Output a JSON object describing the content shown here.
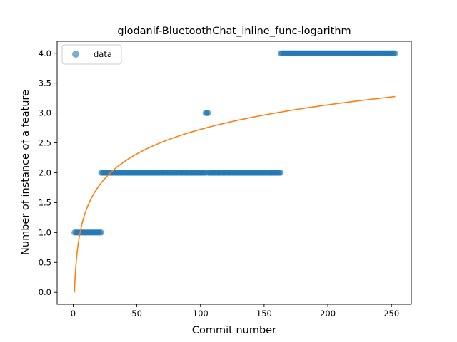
{
  "chart_data": {
    "type": "scatter",
    "title": "glodanif-BluetoothChat_inline_func-logarithm",
    "xlabel": "Commit number",
    "ylabel": "Number of instance of a feature",
    "xlim": [
      -12.6,
      265.6
    ],
    "ylim": [
      -0.2,
      4.2
    ],
    "xticks": [
      0,
      50,
      100,
      150,
      200,
      250
    ],
    "xtick_labels": [
      "0",
      "50",
      "100",
      "150",
      "200",
      "250"
    ],
    "yticks": [
      0.0,
      0.5,
      1.0,
      1.5,
      2.0,
      2.5,
      3.0,
      3.5,
      4.0
    ],
    "ytick_labels": [
      "0.0",
      "0.5",
      "1.0",
      "1.5",
      "2.0",
      "2.5",
      "3.0",
      "3.5",
      "4.0"
    ],
    "grid": false,
    "legend": {
      "placement": "top-left",
      "entries": [
        "data"
      ]
    },
    "series": [
      {
        "name": "data",
        "kind": "scatter",
        "color": "#1f77b4",
        "alpha": 0.6,
        "segments": [
          {
            "x_start": 1,
            "x_end": 22,
            "y": 1
          },
          {
            "x_start": 22,
            "x_end": 104,
            "y": 2
          },
          {
            "x_start": 104,
            "x_end": 106,
            "y": 3
          },
          {
            "x_start": 106,
            "x_end": 163,
            "y": 2
          },
          {
            "x_start": 163,
            "x_end": 253,
            "y": 4
          }
        ]
      },
      {
        "kind": "line",
        "color": "#ff7f0e",
        "function": "a + b*ln(x)",
        "a": 0.0,
        "b": 0.592,
        "x_range": [
          1,
          253
        ]
      }
    ]
  }
}
